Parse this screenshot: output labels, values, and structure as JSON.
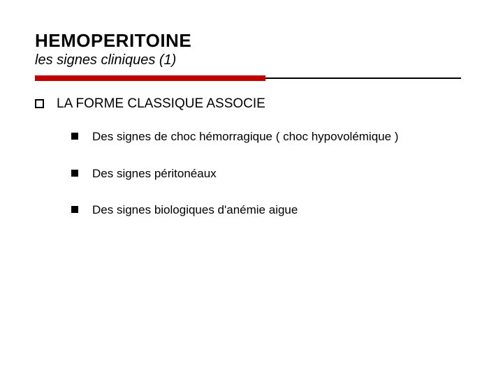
{
  "colors": {
    "accent": "#c00000",
    "text": "#000000",
    "background": "#ffffff"
  },
  "layout": {
    "slide_width": 720,
    "slide_height": 540,
    "rule_total_width": 610,
    "rule_red_width": 330,
    "rule_black_width": 280,
    "rule_red_height": 8,
    "rule_black_height": 2
  },
  "typography": {
    "title_fontsize": 26,
    "subtitle_fontsize": 20,
    "level1_fontsize": 19,
    "level2_fontsize": 17,
    "font_family": "Arial"
  },
  "header": {
    "title": "HEMOPERITOINE",
    "subtitle": "les signes cliniques (1)"
  },
  "content": {
    "level1_label": "LA FORME CLASSIQUE ASSOCIE",
    "level2_items": [
      {
        "label": "Des signes de choc hémorragique ( choc hypovolémique )"
      },
      {
        "label": "Des signes péritonéaux"
      },
      {
        "label": "Des signes biologiques d'anémie aigue"
      }
    ]
  }
}
